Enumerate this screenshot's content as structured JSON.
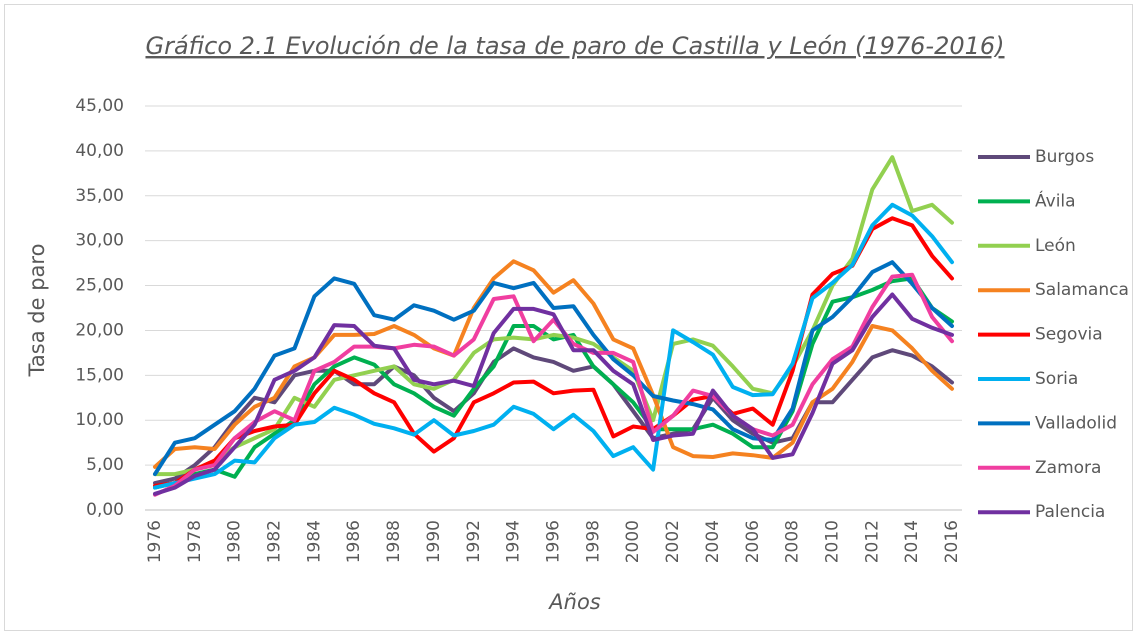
{
  "chart_data": {
    "type": "line",
    "title": "Gráfico 2.1 Evolución de la tasa de paro de Castilla y León (1976-2016)",
    "x_label": "Años",
    "y_label": "Tasa de paro",
    "categories": [
      "1976",
      null,
      "1978",
      null,
      "1980",
      null,
      "1982",
      null,
      "1984",
      null,
      "1986",
      null,
      "1988",
      null,
      "1990",
      null,
      "1992",
      null,
      "1994",
      null,
      "1996",
      null,
      "1998",
      null,
      "2000",
      null,
      "2002",
      null,
      "2004",
      null,
      "2006",
      null,
      "2008",
      null,
      "2010",
      null,
      "2012",
      null,
      "2014",
      null,
      "2016"
    ],
    "ylim": [
      0,
      45
    ],
    "yticks": [
      {
        "value": 0,
        "label": "0,00"
      },
      {
        "value": 5,
        "label": "5,00"
      },
      {
        "value": 10,
        "label": "10,00"
      },
      {
        "value": 15,
        "label": "15,00"
      },
      {
        "value": 20,
        "label": "20,00"
      },
      {
        "value": 25,
        "label": "25,00"
      },
      {
        "value": 30,
        "label": "30,00"
      },
      {
        "value": 35,
        "label": "35,00"
      },
      {
        "value": 40,
        "label": "40,00"
      },
      {
        "value": 45,
        "label": "45,00"
      }
    ],
    "grid": true,
    "legend": "right",
    "series": [
      {
        "name": "Burgos",
        "color": "#5f497a",
        "values": [
          3.0,
          3.5,
          5,
          7,
          10,
          12.5,
          12,
          15,
          15.5,
          15.5,
          14,
          14,
          16,
          15,
          12.5,
          11,
          13,
          16.5,
          18,
          17,
          16.5,
          15.5,
          16,
          14,
          11,
          8,
          8.5,
          9,
          12.5,
          10,
          8.5,
          7.5,
          8,
          12,
          12,
          14.5,
          17,
          17.8,
          17.2,
          16,
          14.2
        ]
      },
      {
        "name": "Ávila",
        "color": "#00b050",
        "values": [
          2.5,
          3,
          4,
          4.5,
          3.7,
          7,
          8.5,
          10,
          14,
          16,
          17,
          16.2,
          14,
          13,
          11.5,
          10.5,
          13.5,
          16,
          20.5,
          20.5,
          19,
          19.5,
          16,
          14,
          12,
          9,
          9,
          9,
          9.5,
          8.5,
          7,
          7,
          11,
          18.5,
          23.2,
          23.7,
          24.5,
          25.5,
          25.8,
          22.5,
          21
        ]
      },
      {
        "name": "León",
        "color": "#92d050",
        "values": [
          4,
          4,
          4.5,
          5.5,
          7,
          8,
          9,
          12.5,
          11.5,
          14.5,
          15,
          15.5,
          16,
          14,
          13.5,
          14.5,
          17.5,
          19,
          19.2,
          19,
          19.5,
          19.2,
          18.5,
          17,
          15.5,
          10,
          18.5,
          19,
          18.3,
          16,
          13.5,
          13,
          16,
          20,
          25,
          28,
          35.7,
          39.3,
          33.3,
          34,
          32
        ]
      },
      {
        "name": "Salamanca",
        "color": "#f58220",
        "values": [
          4.8,
          6.8,
          7,
          6.8,
          9.5,
          11.5,
          12.5,
          16,
          17,
          19.5,
          19.5,
          19.6,
          20.5,
          19.5,
          18,
          17.2,
          22.5,
          25.8,
          27.7,
          26.7,
          24.2,
          25.6,
          23,
          19,
          18,
          12.8,
          7,
          6,
          5.9,
          6.3,
          6.1,
          5.8,
          7.5,
          12,
          13.5,
          16.5,
          20.5,
          20,
          18,
          15.5,
          13.5
        ]
      },
      {
        "name": "Segovia",
        "color": "#ff0000",
        "values": [
          2.7,
          3,
          4.5,
          5.5,
          8,
          8.8,
          9.3,
          9.5,
          13,
          15.5,
          14.5,
          13,
          12,
          8.5,
          6.5,
          8,
          12,
          13,
          14.2,
          14.3,
          13,
          13.3,
          13.4,
          8.2,
          9.3,
          9,
          10.5,
          12.3,
          12.7,
          10.7,
          11.3,
          9.5,
          15.5,
          24,
          26.3,
          27.2,
          31.3,
          32.5,
          31.7,
          28.3,
          25.8
        ]
      },
      {
        "name": "Soria",
        "color": "#00b0f0",
        "values": [
          2.5,
          3,
          3.5,
          4,
          5.5,
          5.3,
          8,
          9.5,
          9.8,
          11.4,
          10.6,
          9.6,
          9.1,
          8.4,
          10,
          8.3,
          8.8,
          9.5,
          11.5,
          10.7,
          9,
          10.6,
          8.8,
          6,
          7,
          4.5,
          20,
          18.7,
          17.3,
          13.7,
          12.8,
          12.9,
          16.3,
          23.6,
          25.3,
          27.3,
          31.7,
          34,
          32.8,
          30.5,
          27.6
        ]
      },
      {
        "name": "Valladolid",
        "color": "#0070c0",
        "values": [
          4,
          7.5,
          8,
          9.5,
          11,
          13.5,
          17.2,
          18,
          23.8,
          25.8,
          25.2,
          21.7,
          21.2,
          22.8,
          22.2,
          21.2,
          22.2,
          25.3,
          24.7,
          25.3,
          22.5,
          22.7,
          19.5,
          16.8,
          15,
          12.7,
          12.2,
          11.8,
          11.2,
          9,
          8,
          7.8,
          11.3,
          20,
          21.5,
          23.7,
          26.5,
          27.6,
          25.2,
          22.5,
          20.5
        ]
      },
      {
        "name": "Zamora",
        "color": "#f03ea0",
        "values": [
          1.7,
          2.7,
          4.5,
          5,
          8,
          9.8,
          11,
          10,
          15.5,
          16.5,
          18.2,
          18.2,
          18,
          18.4,
          18.2,
          17.2,
          19,
          23.5,
          23.8,
          18.8,
          21.2,
          18.5,
          17.5,
          17.5,
          16.5,
          8.7,
          10.5,
          13.3,
          12.7,
          10.5,
          9,
          8.3,
          9.5,
          14,
          16.8,
          18.2,
          22.6,
          26,
          26.2,
          21.5,
          18.8
        ]
      },
      {
        "name": "Palencia",
        "color": "#7030a0",
        "values": [
          1.8,
          2.5,
          3.8,
          4.5,
          7,
          9.5,
          14.5,
          15.5,
          17,
          20.6,
          20.5,
          18.3,
          18,
          14.5,
          14,
          14.4,
          13.8,
          19.7,
          22.4,
          22.4,
          21.8,
          17.8,
          17.8,
          15.5,
          14,
          7.8,
          8.3,
          8.5,
          13.3,
          10.5,
          9,
          5.8,
          6.2,
          10.8,
          16.3,
          17.8,
          21.5,
          24,
          21.3,
          20.3,
          19.5
        ]
      }
    ]
  }
}
